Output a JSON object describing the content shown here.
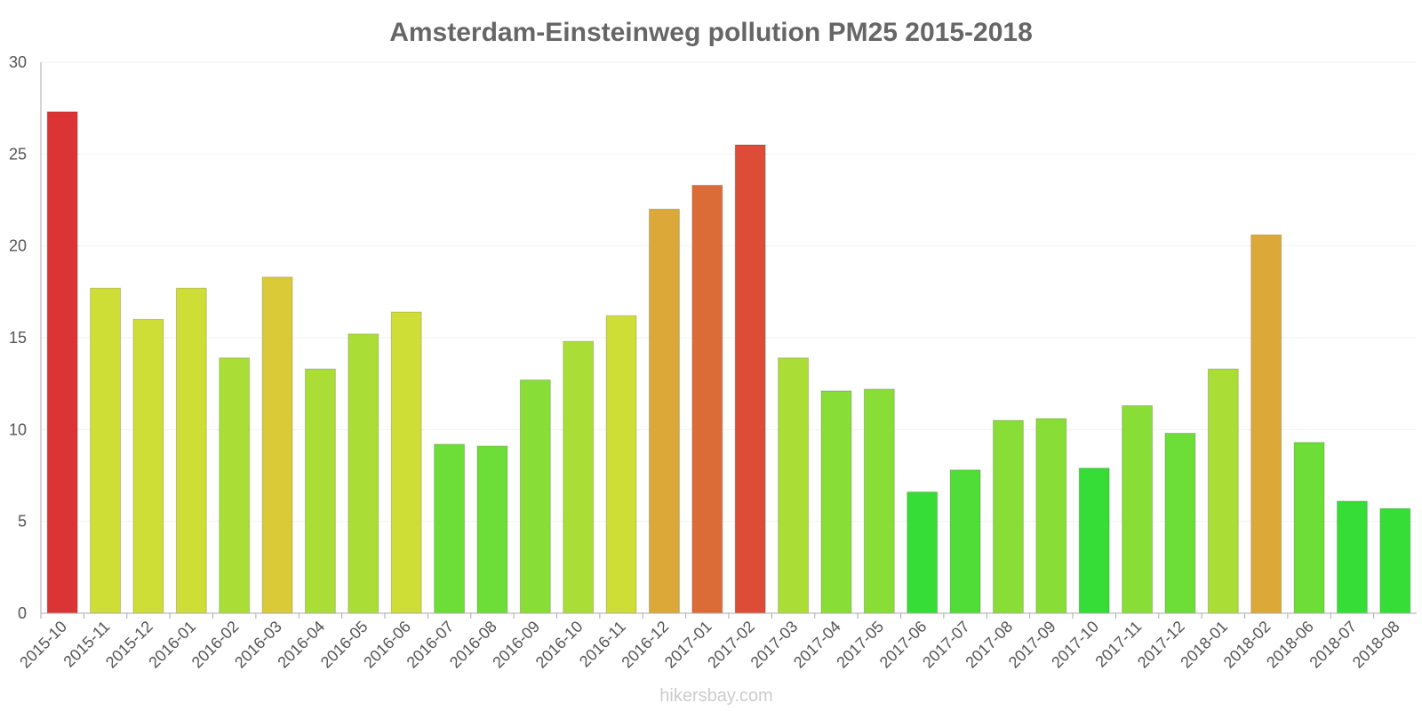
{
  "chart_data": {
    "type": "bar",
    "title": "Amsterdam-Einsteinweg pollution PM25 2015-2018",
    "xlabel": "",
    "ylabel": "",
    "ylim": [
      0,
      30
    ],
    "yticks": [
      0,
      5,
      10,
      15,
      20,
      25,
      30
    ],
    "grid": true,
    "categories": [
      "2015-10",
      "2015-11",
      "2015-12",
      "2016-01",
      "2016-02",
      "2016-03",
      "2016-04",
      "2016-05",
      "2016-06",
      "2016-07",
      "2016-08",
      "2016-09",
      "2016-10",
      "2016-11",
      "2016-12",
      "2017-01",
      "2017-02",
      "2017-03",
      "2017-04",
      "2017-05",
      "2017-06",
      "2017-07",
      "2017-08",
      "2017-09",
      "2017-10",
      "2017-11",
      "2017-12",
      "2018-01",
      "2018-02",
      "2018-06",
      "2018-07",
      "2018-08"
    ],
    "values": [
      27.3,
      17.7,
      16.0,
      17.7,
      13.9,
      18.3,
      13.3,
      15.2,
      16.4,
      9.2,
      9.1,
      12.7,
      14.8,
      16.2,
      22.0,
      23.3,
      25.5,
      13.9,
      12.1,
      12.2,
      6.6,
      7.8,
      10.5,
      10.6,
      7.9,
      11.3,
      9.8,
      13.3,
      20.6,
      9.3,
      6.1,
      5.7
    ],
    "bar_colors": [
      "#dc3434",
      "#cfdd37",
      "#cfdd37",
      "#cfdd37",
      "#aade37",
      "#dbca37",
      "#aade37",
      "#aade37",
      "#cfdd37",
      "#6ddd37",
      "#6ddd37",
      "#88dd37",
      "#aade37",
      "#cfdd37",
      "#dca837",
      "#dc6c37",
      "#dc4c37",
      "#aade37",
      "#88dd37",
      "#88dd37",
      "#37dd37",
      "#50dd37",
      "#88dd37",
      "#88dd37",
      "#37dd37",
      "#88dd37",
      "#6ddd37",
      "#aade37",
      "#dca837",
      "#6ddd37",
      "#37dd37",
      "#37dd37"
    ]
  },
  "watermark": "hikersbay.com"
}
